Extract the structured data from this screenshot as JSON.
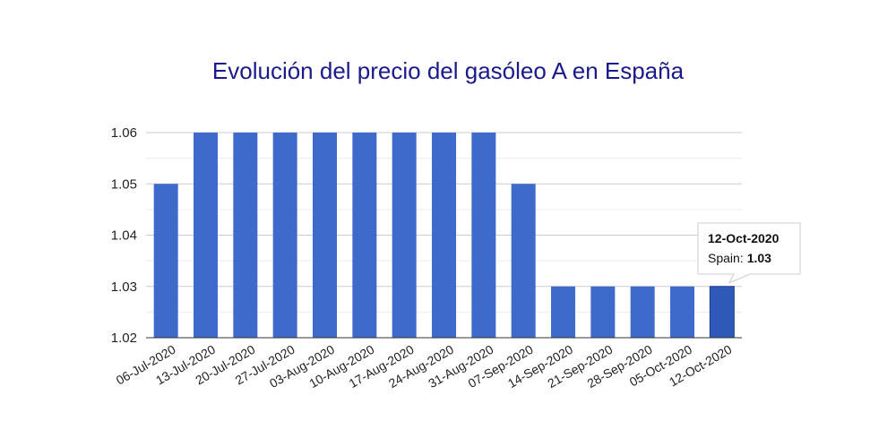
{
  "chart_data": {
    "type": "bar",
    "title": "Evolución del precio del gasóleo A en España",
    "xlabel": "",
    "ylabel": "",
    "categories": [
      "06-Jul-2020",
      "13-Jul-2020",
      "20-Jul-2020",
      "27-Jul-2020",
      "03-Aug-2020",
      "10-Aug-2020",
      "17-Aug-2020",
      "24-Aug-2020",
      "31-Aug-2020",
      "07-Sep-2020",
      "14-Sep-2020",
      "21-Sep-2020",
      "28-Sep-2020",
      "05-Oct-2020",
      "12-Oct-2020"
    ],
    "series": [
      {
        "name": "Spain",
        "values": [
          1.05,
          1.06,
          1.06,
          1.06,
          1.06,
          1.06,
          1.06,
          1.06,
          1.06,
          1.05,
          1.03,
          1.03,
          1.03,
          1.03,
          1.03
        ]
      }
    ],
    "yticks": [
      "1.02",
      "1.03",
      "1.04",
      "1.05",
      "1.06"
    ],
    "ylim": [
      1.02,
      1.06
    ],
    "grid": true,
    "legend": "none",
    "bar_color": "#3d6acb",
    "highlight_color": "#2f59b8",
    "tooltip": {
      "category": "12-Oct-2020",
      "series_label": "Spain:",
      "value": "1.03"
    }
  }
}
